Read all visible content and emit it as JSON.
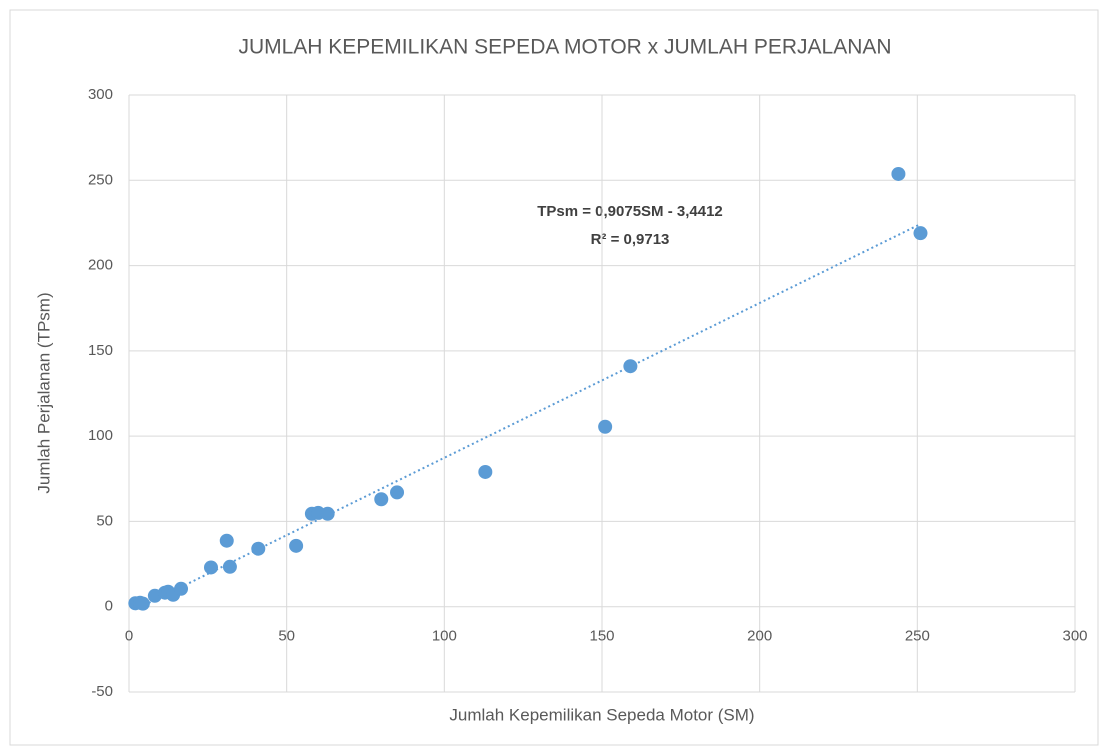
{
  "chart_data": {
    "type": "scatter",
    "title": "JUMLAH KEPEMILIKAN SEPEDA MOTOR x JUMLAH PERJALANAN",
    "xlabel": "Jumlah Kepemilikan Sepeda Motor (SM)",
    "ylabel": "Jumlah Perjalanan (TPsm)",
    "annotations": [
      "TPsm = 0,9075SM - 3,4412",
      "R² = 0,9713"
    ],
    "trendline": {
      "slope": 0.9075,
      "intercept": -3.4412
    },
    "series": [
      {
        "name": "TPsm",
        "color": "#5b9bd5",
        "x": [
          2,
          3.5,
          4.4,
          8.2,
          11.4,
          12.4,
          14,
          16.5,
          26,
          32,
          31,
          41,
          53,
          58,
          60,
          63,
          80,
          85,
          113,
          151,
          159,
          244,
          251
        ],
        "values": [
          2,
          2.3,
          1.8,
          6.4,
          8.2,
          8.8,
          7,
          10.5,
          23,
          23.4,
          38.7,
          34,
          35.7,
          54.5,
          55,
          54.5,
          63,
          67,
          79,
          105.5,
          141,
          253.7,
          219
        ]
      }
    ],
    "xlim": [
      0,
      300
    ],
    "xticks": [
      0,
      50,
      100,
      150,
      200,
      250,
      300
    ],
    "ylim": [
      -50,
      300
    ],
    "yticks": [
      -50,
      0,
      50,
      100,
      150,
      200,
      250,
      300
    ],
    "grid": true
  }
}
